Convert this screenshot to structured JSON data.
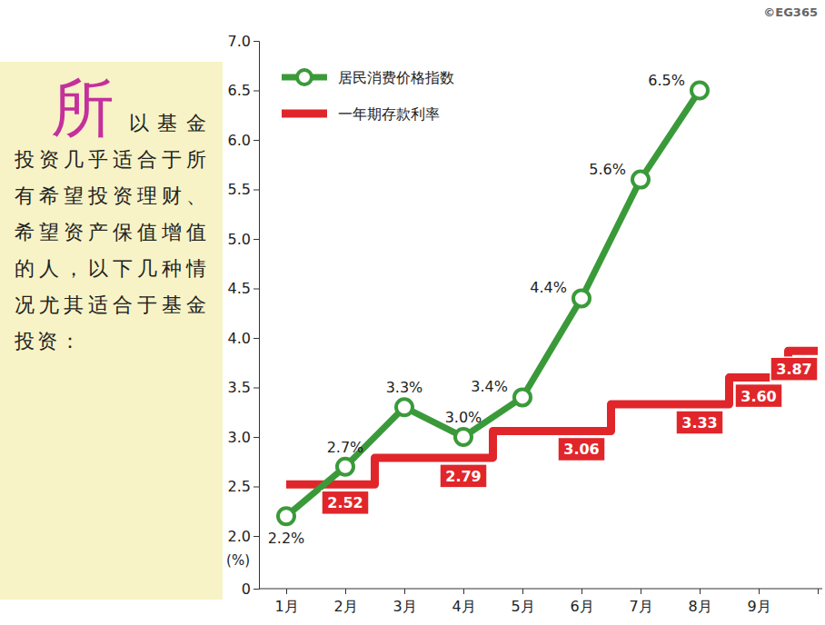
{
  "chart_data": {
    "type": "line",
    "credit": "©EG365",
    "ylabel": "(%)",
    "categories": [
      "1月",
      "2月",
      "3月",
      "4月",
      "5月",
      "6月",
      "7月",
      "8月",
      "9月",
      null
    ],
    "series": [
      {
        "name": "居民消费价格指数",
        "color": "#3a9a3a",
        "marker": "circle",
        "line_style": "solid",
        "values": [
          2.2,
          2.7,
          3.3,
          3.0,
          3.4,
          4.4,
          5.6,
          6.5,
          null,
          null
        ],
        "value_labels": [
          "2.2%",
          "2.7%",
          "3.3%",
          "3.0%",
          "3.4%",
          "4.4%",
          "5.6%",
          "6.5%",
          null,
          null
        ]
      },
      {
        "name": "一年期存款利率",
        "color": "#e0262a",
        "line_style": "step",
        "values": [
          2.52,
          2.52,
          2.79,
          2.79,
          3.06,
          3.06,
          3.33,
          3.33,
          3.6,
          3.87
        ],
        "value_labels": [
          "2.52",
          null,
          "2.79",
          null,
          "3.06",
          null,
          "3.33",
          null,
          "3.60",
          "3.87"
        ]
      }
    ],
    "ylim": [
      0,
      7
    ],
    "yticks": [
      0,
      {
        "value": 2,
        "label": "2.0"
      },
      2.5,
      {
        "value": 3,
        "label": "3.0"
      },
      3.5,
      {
        "value": 4,
        "label": "4.0"
      },
      4.5,
      {
        "value": 5,
        "label": "5.0"
      },
      5.5,
      {
        "value": 6,
        "label": "6.0"
      },
      6.5,
      {
        "value": 7,
        "label": "7.0"
      }
    ],
    "grid": false,
    "legend": "top-left",
    "data_labels": true
  },
  "side_text": {
    "initial": "所",
    "text": "以基金投资几乎适合于所有希望投资理财、希望资产保值增值的人，以下几种情况尤其适合于基金投资："
  }
}
